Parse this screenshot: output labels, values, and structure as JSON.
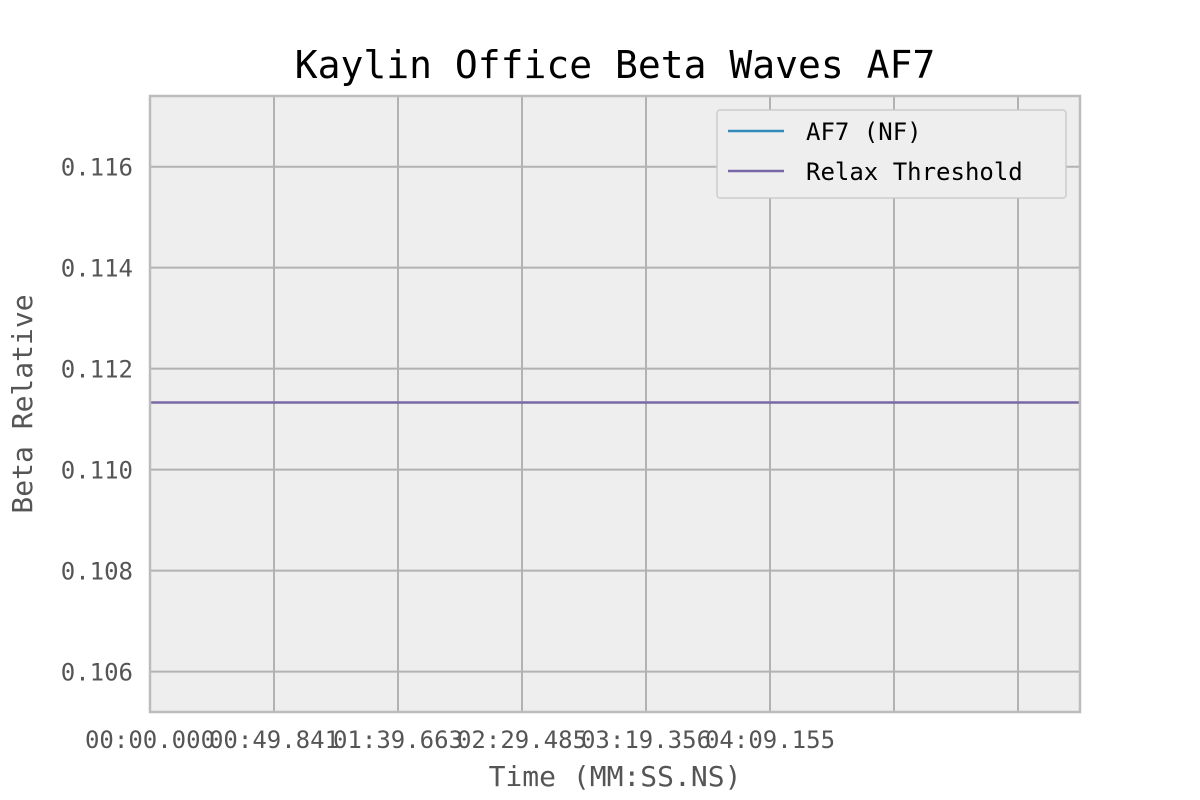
{
  "chart_data": {
    "type": "line",
    "title": "Kaylin Office Beta Waves AF7",
    "xlabel": "Time (MM:SS.NS)",
    "ylabel": "Beta Relative",
    "x_ticks": [
      "00:00.000",
      "00:49.841",
      "01:39.663",
      "02:29.485",
      "03:19.356",
      "04:09.155"
    ],
    "y_ticks": [
      "0.106",
      "0.108",
      "0.110",
      "0.112",
      "0.114",
      "0.116"
    ],
    "ylim": [
      0.1052,
      0.1174
    ],
    "grid": true,
    "legend_position": "top-right",
    "series": [
      {
        "name": "AF7 (NF)",
        "color": "#348abd",
        "values": []
      },
      {
        "name": "Relax Threshold",
        "color": "#7a68a6",
        "values": [
          0.11133,
          0.11133
        ]
      }
    ],
    "colors": {
      "plot_background": "#eeeeee",
      "grid": "#b2b2b2",
      "frame": "#bcbcbc"
    }
  }
}
